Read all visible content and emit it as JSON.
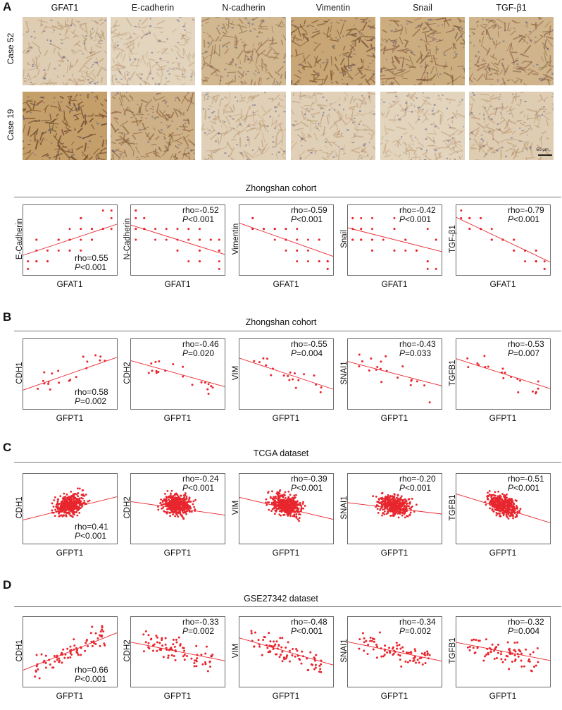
{
  "panels": [
    "A",
    "B",
    "C",
    "D"
  ],
  "panel_a": {
    "markers": [
      "GFAT1",
      "E-cadherin",
      "N-cadherin",
      "Vimentin",
      "Snail",
      "TGF-β1"
    ],
    "cases": [
      "Case 52",
      "Case 19"
    ],
    "scale_bar": "50 μm"
  },
  "cohorts": {
    "a": "Zhongshan cohort",
    "b": "Zhongshan cohort",
    "c": "TCGA dataset",
    "d": "GSE27342 dataset"
  },
  "rows": [
    {
      "id": "a",
      "xlabel": "GFAT1",
      "plots": [
        {
          "ylabel": "E-Cadherin",
          "rho": "rho=0.55",
          "p_label": "P",
          "p_value": "<0.001",
          "stat_pos": "bottom-right"
        },
        {
          "ylabel": "N-Cadherin",
          "rho": "rho=-0.52",
          "p_label": "P",
          "p_value": "<0.001",
          "stat_pos": "top-right"
        },
        {
          "ylabel": "Vimentin",
          "rho": "rho=-0.59",
          "p_label": "P",
          "p_value": "<0.001",
          "stat_pos": "top-right"
        },
        {
          "ylabel": "Snail",
          "rho": "rho=-0.42",
          "p_label": "P",
          "p_value": "<0.001",
          "stat_pos": "top-right"
        },
        {
          "ylabel": "TGF-β1",
          "rho": "rho=-0.79",
          "p_label": "P",
          "p_value": "<0.001",
          "stat_pos": "top-right"
        }
      ]
    },
    {
      "id": "b",
      "xlabel": "GFPT1",
      "plots": [
        {
          "ylabel": "CDH1",
          "rho": "rho=0.58",
          "p_label": "P",
          "p_value": "=0.002",
          "stat_pos": "bottom-right"
        },
        {
          "ylabel": "CDH2",
          "rho": "rho=-0.46",
          "p_label": "P",
          "p_value": "=0.020",
          "stat_pos": "top-right"
        },
        {
          "ylabel": "VIM",
          "rho": "rho=-0.55",
          "p_label": "P",
          "p_value": "=0.004",
          "stat_pos": "top-right"
        },
        {
          "ylabel": "SNAI1",
          "rho": "rho=-0.43",
          "p_label": "P",
          "p_value": "=0.033",
          "stat_pos": "top-right"
        },
        {
          "ylabel": "TGFB1",
          "rho": "rho=-0.53",
          "p_label": "P",
          "p_value": "=0.007",
          "stat_pos": "top-right"
        }
      ]
    },
    {
      "id": "c",
      "xlabel": "GFPT1",
      "plots": [
        {
          "ylabel": "CDH1",
          "rho": "rho=0.41",
          "p_label": "P",
          "p_value": "<0.001",
          "stat_pos": "bottom-right"
        },
        {
          "ylabel": "CDH2",
          "rho": "rho=-0.24",
          "p_label": "P",
          "p_value": "<0.001",
          "stat_pos": "top-right"
        },
        {
          "ylabel": "VIM",
          "rho": "rho=-0.39",
          "p_label": "P",
          "p_value": "<0.001",
          "stat_pos": "top-right"
        },
        {
          "ylabel": "SNAI1",
          "rho": "rho=-0.20",
          "p_label": "P",
          "p_value": "<0.001",
          "stat_pos": "top-right"
        },
        {
          "ylabel": "TGFB1",
          "rho": "rho=-0.51",
          "p_label": "P",
          "p_value": "<0.001",
          "stat_pos": "top-right"
        }
      ]
    },
    {
      "id": "d",
      "xlabel": "GFPT1",
      "plots": [
        {
          "ylabel": "CDH1",
          "rho": "rho=0.66",
          "p_label": "P",
          "p_value": "<0.001",
          "stat_pos": "bottom-right"
        },
        {
          "ylabel": "CDH2",
          "rho": "rho=-0.33",
          "p_label": "P",
          "p_value": "=0.002",
          "stat_pos": "top-right"
        },
        {
          "ylabel": "VIM",
          "rho": "rho=-0.48",
          "p_label": "P",
          "p_value": "<0.001",
          "stat_pos": "top-right"
        },
        {
          "ylabel": "SNAI1",
          "rho": "rho=-0.34",
          "p_label": "P",
          "p_value": "=0.002",
          "stat_pos": "top-right"
        },
        {
          "ylabel": "TGFB1",
          "rho": "rho=-0.32",
          "p_label": "P",
          "p_value": "=0.004",
          "stat_pos": "top-right"
        }
      ]
    }
  ],
  "colors": {
    "points": "#e8262e",
    "fit_line": "#e8262e",
    "tissue_brown": "#b87a3a",
    "tissue_pale": "#e6d9c4",
    "nuclei": "#4a4f8a"
  }
}
